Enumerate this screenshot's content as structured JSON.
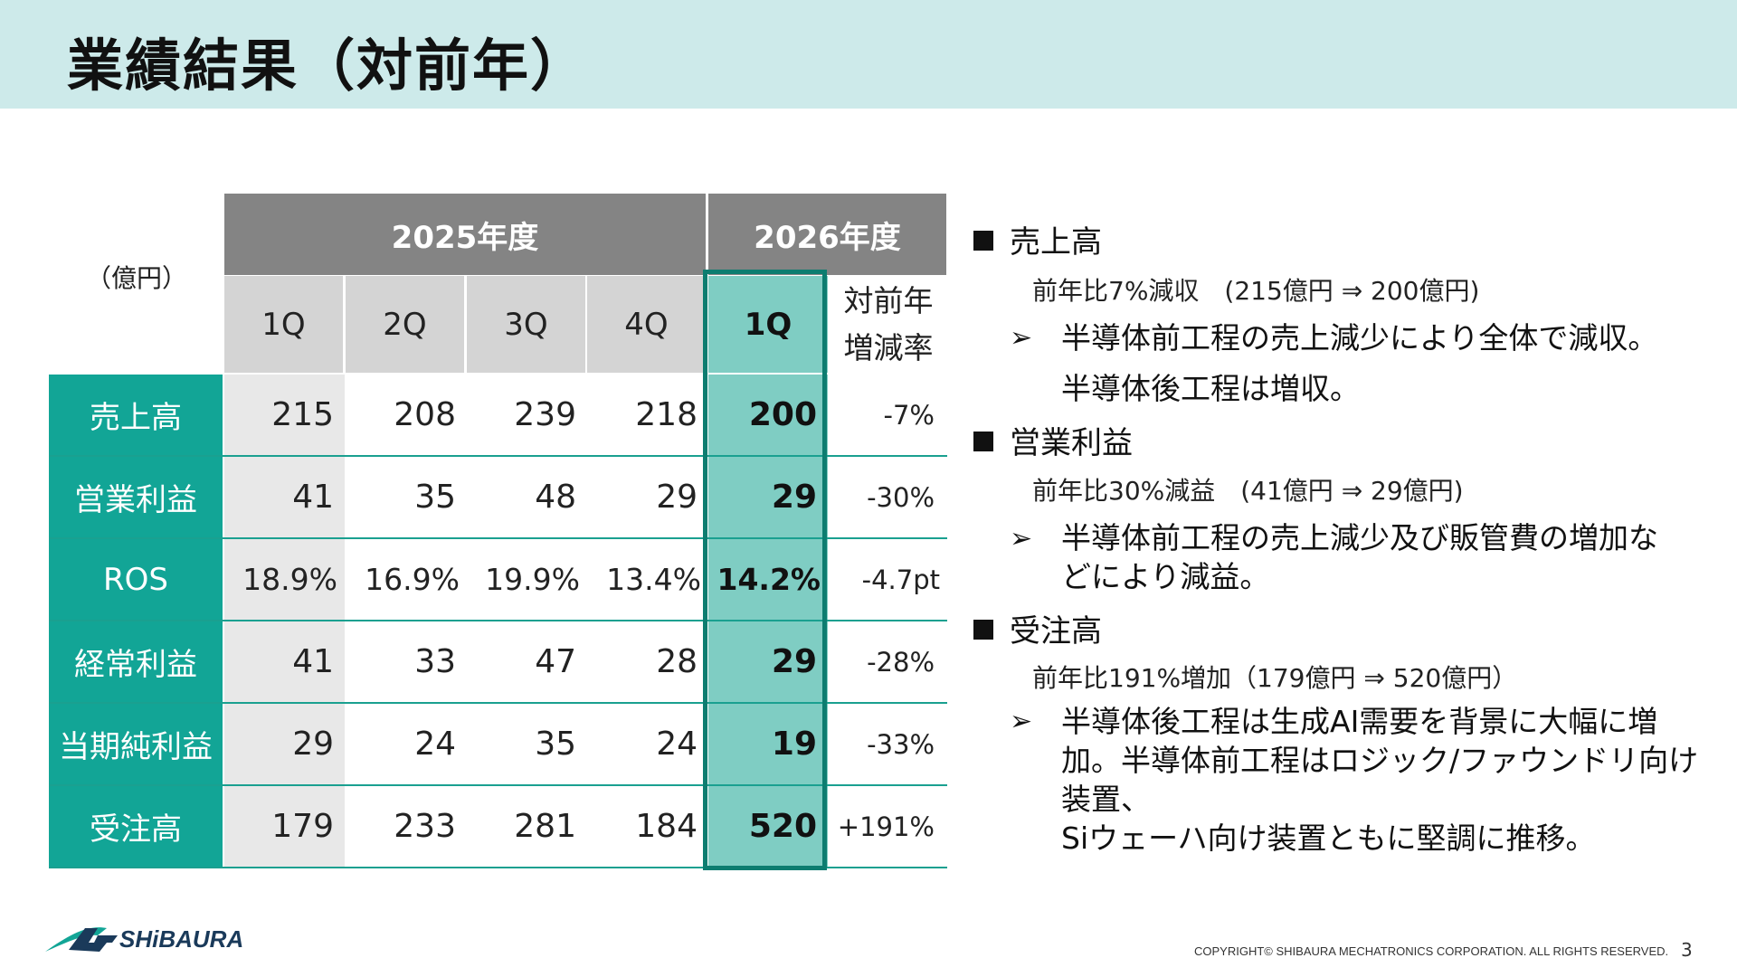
{
  "title": "業績結果（対前年）",
  "unit": "（億円）",
  "table": {
    "fy2025": "2025年度",
    "fy2026": "2026年度",
    "quarters": [
      "1Q",
      "2Q",
      "3Q",
      "4Q"
    ],
    "current_quarter": "1Q",
    "yoy_line1": "対前年",
    "yoy_line2": "増減率",
    "rows": [
      {
        "label": "売上高",
        "values": [
          "215",
          "208",
          "239",
          "218"
        ],
        "current": "200",
        "yoy": "-7%"
      },
      {
        "label": "営業利益",
        "values": [
          "41",
          "35",
          "48",
          "29"
        ],
        "current": "29",
        "yoy": "-30%"
      },
      {
        "label": "ROS",
        "values": [
          "18.9%",
          "16.9%",
          "19.9%",
          "13.4%"
        ],
        "current": "14.2%",
        "yoy": "-4.7pt"
      },
      {
        "label": "経常利益",
        "values": [
          "41",
          "33",
          "47",
          "28"
        ],
        "current": "29",
        "yoy": "-28%"
      },
      {
        "label": "当期純利益",
        "values": [
          "29",
          "24",
          "35",
          "24"
        ],
        "current": "19",
        "yoy": "-33%"
      },
      {
        "label": "受注高",
        "values": [
          "179",
          "233",
          "281",
          "184"
        ],
        "current": "520",
        "yoy": "+191%"
      }
    ]
  },
  "sections": [
    {
      "heading": "売上高",
      "note": "前年比7%減収　(215億円 ⇒ 200億円)",
      "lines": [
        "半導体前工程の売上減少により全体で減収。",
        "半導体後工程は増収。"
      ]
    },
    {
      "heading": "営業利益",
      "note": "前年比30%減益　(41億円 ⇒ 29億円)",
      "lines": [
        "半導体前工程の売上減少及び販管費の増加な",
        "どにより減益。"
      ]
    },
    {
      "heading": "受注高",
      "note": "前年比191%増加（179億円 ⇒ 520億円）",
      "lines": [
        "半導体後工程は生成AI需要を背景に大幅に増",
        "加。半導体前工程はロジック/ファウンドリ向け装置、",
        "Siウェーハ向け装置ともに堅調に推移。"
      ]
    }
  ],
  "footer": {
    "logo_text": "SHiBAURA",
    "copyright": "COPYRIGHT© SHIBAURA MECHATRONICS CORPORATION. ALL RIGHTS RESERVED.",
    "page": "3"
  },
  "colors": {
    "title_bg": "#cdeaea",
    "label_teal": "#12a596",
    "highlight": "#7fcdc3",
    "frame": "#0d7d70",
    "header_gray": "#848484"
  }
}
